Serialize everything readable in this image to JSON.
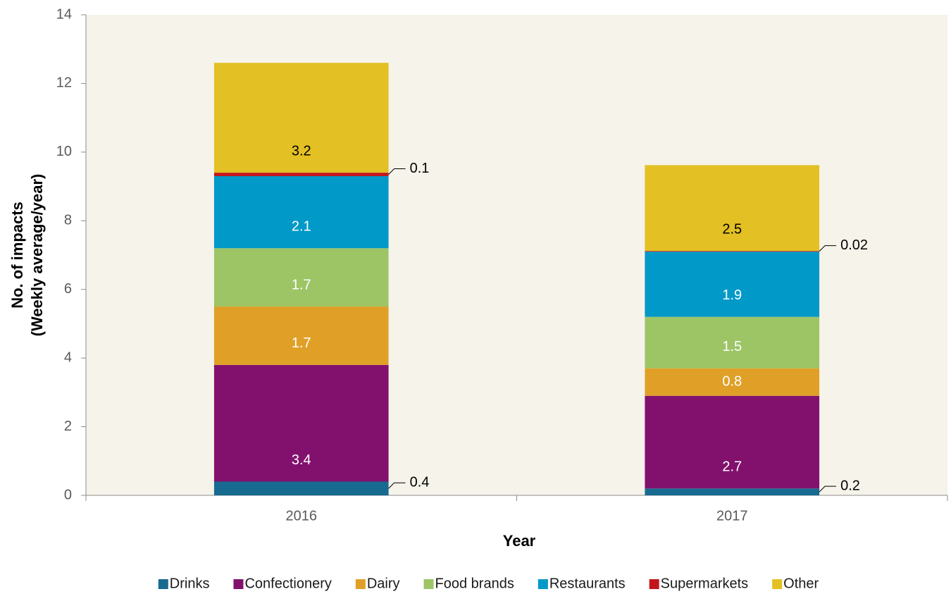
{
  "chart_data": {
    "type": "stacked_bar",
    "categories": [
      "2016",
      "2017"
    ],
    "series": [
      {
        "name": "Drinks",
        "color": "#176b90",
        "values": [
          0.4,
          0.2
        ]
      },
      {
        "name": "Confectionery",
        "color": "#82116e",
        "values": [
          3.4,
          2.7
        ]
      },
      {
        "name": "Dairy",
        "color": "#e0a028",
        "values": [
          1.7,
          0.8
        ]
      },
      {
        "name": "Food brands",
        "color": "#9dc566",
        "values": [
          1.7,
          1.5
        ]
      },
      {
        "name": "Restaurants",
        "color": "#0099c8",
        "values": [
          2.1,
          1.9
        ]
      },
      {
        "name": "Supermarkets",
        "color": "#c3161c",
        "values": [
          0.1,
          0.02
        ]
      },
      {
        "name": "Other",
        "color": "#e3c023",
        "values": [
          3.2,
          2.5
        ]
      }
    ],
    "ylim": [
      0,
      14
    ],
    "yticks": [
      0,
      2,
      4,
      6,
      8,
      10,
      12,
      14
    ],
    "ylabel": [
      "No. of impacts",
      "(Weekly average/year)"
    ],
    "xlabel": "Year",
    "legend": "bottom"
  }
}
